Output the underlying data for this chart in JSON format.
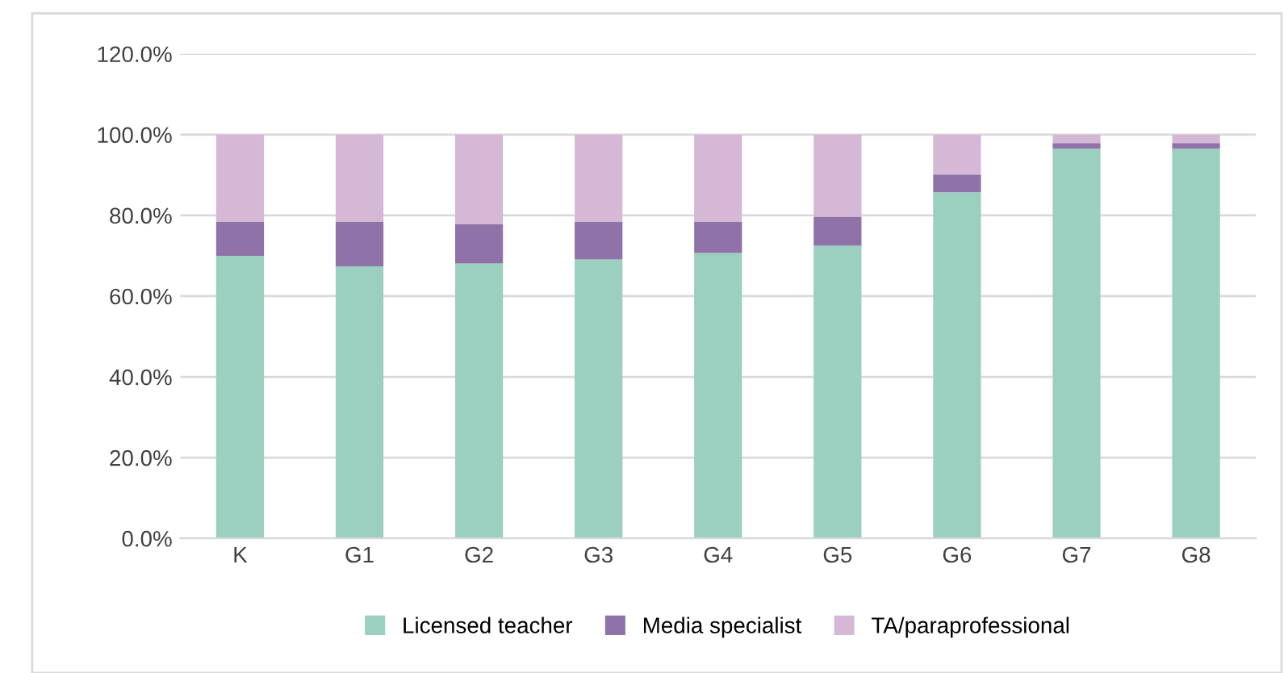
{
  "chart_data": {
    "type": "bar",
    "stacked": true,
    "categories": [
      "K",
      "G1",
      "G2",
      "G3",
      "G4",
      "G5",
      "G6",
      "G7",
      "G8"
    ],
    "series": [
      {
        "name": "Licensed teacher",
        "color": "#9bcfc0",
        "values": [
          70,
          67.4,
          68.1,
          69.1,
          70.7,
          72.5,
          85.7,
          96.5,
          96.5
        ]
      },
      {
        "name": "Media specialist",
        "color": "#8e72a8",
        "values": [
          8.5,
          11.1,
          9.7,
          9.4,
          7.8,
          7.2,
          4.4,
          1.4,
          1.4
        ]
      },
      {
        "name": "TA/paraprofessional",
        "color": "#d5b8d6",
        "values": [
          21.5,
          21.5,
          22.2,
          21.5,
          21.5,
          20.3,
          9.9,
          2.1,
          2.1
        ]
      }
    ],
    "ylim": [
      0,
      120
    ],
    "yticks": [
      {
        "value": 0,
        "label": "0.0%"
      },
      {
        "value": 20,
        "label": "20.0%"
      },
      {
        "value": 40,
        "label": "40.0%"
      },
      {
        "value": 60,
        "label": "60.0%"
      },
      {
        "value": 80,
        "label": "80.0%"
      },
      {
        "value": 100,
        "label": "100.0%"
      },
      {
        "value": 120,
        "label": "120.0%"
      }
    ],
    "grid": "y",
    "legend": "bottom"
  }
}
